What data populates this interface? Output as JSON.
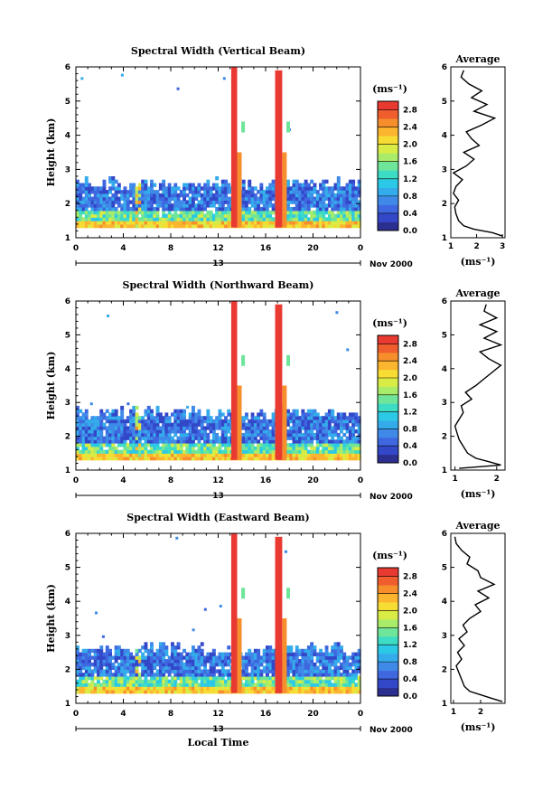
{
  "figure": {
    "xlabel": "Local Time",
    "date_label": "Nov 2000",
    "day_label": "13",
    "units_label": "(ms⁻¹)",
    "average_title": "Average",
    "colormap": [
      "#2b2f8f",
      "#3347c9",
      "#3e67e0",
      "#3f8ae8",
      "#34abeb",
      "#2cc9e6",
      "#3ddcc4",
      "#6fe59a",
      "#a9ec6a",
      "#d9ec45",
      "#f6dc33",
      "#fbb52f",
      "#f78e2c",
      "#ef5e2c",
      "#e93a32"
    ]
  },
  "chart_data": [
    {
      "type": "heatmap",
      "title": "Spectral Width (Vertical Beam)",
      "ylabel": "Height (km)",
      "xlim": [
        0,
        24
      ],
      "ylim": [
        1,
        6
      ],
      "x_ticks": [
        "0",
        "4",
        "8",
        "12",
        "16",
        "20",
        "0"
      ],
      "y_ticks": [
        "1",
        "2",
        "3",
        "4",
        "5",
        "6"
      ],
      "colorbar": {
        "range": [
          0,
          3.0
        ],
        "ticks": [
          "0.0",
          "0.4",
          "0.8",
          "1.2",
          "1.6",
          "2.0",
          "2.4",
          "2.8"
        ]
      },
      "echo_top_km": 2.55,
      "high_width_bands_hours": [
        [
          13.1,
          13.6
        ],
        [
          16.8,
          17.4
        ]
      ],
      "sparse_echoes": [
        [
          0.4,
          5.7
        ],
        [
          3.8,
          5.8
        ],
        [
          8.5,
          5.4
        ],
        [
          12.4,
          5.7
        ],
        [
          17.9,
          4.2
        ]
      ],
      "average": {
        "xlabel": "(ms⁻¹)",
        "xlim": [
          1,
          3.1
        ],
        "x_ticks": [
          "1",
          "2",
          "3"
        ],
        "height_km": [
          1.05,
          1.15,
          1.25,
          1.35,
          1.5,
          1.7,
          1.9,
          2.1,
          2.3,
          2.5,
          2.7,
          2.9,
          3.1,
          3.3,
          3.5,
          3.7,
          3.9,
          4.1,
          4.3,
          4.5,
          4.7,
          4.9,
          5.1,
          5.3,
          5.5,
          5.7,
          5.9
        ],
        "width_ms": [
          3.0,
          2.6,
          1.9,
          1.5,
          1.3,
          1.2,
          1.15,
          1.3,
          1.1,
          1.2,
          1.45,
          1.1,
          1.6,
          1.9,
          1.5,
          2.1,
          1.8,
          1.6,
          2.2,
          2.7,
          1.9,
          2.4,
          1.8,
          2.2,
          1.7,
          1.4,
          1.5
        ]
      }
    },
    {
      "type": "heatmap",
      "title": "Spectral Width (Northward Beam)",
      "ylabel": "Height (km)",
      "xlim": [
        0,
        24
      ],
      "ylim": [
        1,
        6
      ],
      "x_ticks": [
        "0",
        "4",
        "8",
        "12",
        "16",
        "20",
        "0"
      ],
      "y_ticks": [
        "1",
        "2",
        "3",
        "4",
        "5",
        "6"
      ],
      "colorbar": {
        "range": [
          0,
          3.0
        ],
        "ticks": [
          "0.0",
          "0.4",
          "0.8",
          "1.2",
          "1.6",
          "2.0",
          "2.4",
          "2.8"
        ]
      },
      "echo_top_km": 2.65,
      "high_width_bands_hours": [
        [
          13.1,
          13.6
        ],
        [
          16.8,
          17.4
        ]
      ],
      "sparse_echoes": [
        [
          2.6,
          5.6
        ],
        [
          1.2,
          3.0
        ],
        [
          4.3,
          3.0
        ],
        [
          9.3,
          2.9
        ],
        [
          21.9,
          5.7
        ],
        [
          22.8,
          4.6
        ]
      ],
      "average": {
        "xlabel": "(ms⁻¹)",
        "xlim": [
          0.9,
          2.2
        ],
        "x_ticks": [
          "1",
          "2"
        ],
        "height_km": [
          1.05,
          1.15,
          1.25,
          1.35,
          1.5,
          1.7,
          1.9,
          2.1,
          2.3,
          2.5,
          2.7,
          2.9,
          3.1,
          3.3,
          3.5,
          3.7,
          3.9,
          4.1,
          4.3,
          4.5,
          4.7,
          4.9,
          5.1,
          5.3,
          5.5,
          5.7,
          5.9
        ],
        "width_ms": [
          1.1,
          2.1,
          1.8,
          1.5,
          1.3,
          1.2,
          1.1,
          1.05,
          1.0,
          1.1,
          1.2,
          1.15,
          1.4,
          1.25,
          1.5,
          1.7,
          1.9,
          2.1,
          1.8,
          1.6,
          2.1,
          1.7,
          2.0,
          1.6,
          2.0,
          1.7,
          1.75
        ]
      }
    },
    {
      "type": "heatmap",
      "title": "Spectral Width (Eastward Beam)",
      "ylabel": "Height (km)",
      "xlim": [
        0,
        24
      ],
      "ylim": [
        1,
        6
      ],
      "x_ticks": [
        "0",
        "4",
        "8",
        "12",
        "16",
        "20",
        "0"
      ],
      "y_ticks": [
        "1",
        "2",
        "3",
        "4",
        "5",
        "6"
      ],
      "colorbar": {
        "range": [
          0,
          3.0
        ],
        "ticks": [
          "0.0",
          "0.4",
          "0.8",
          "1.2",
          "1.6",
          "2.0",
          "2.4",
          "2.8"
        ]
      },
      "echo_top_km": 2.55,
      "high_width_bands_hours": [
        [
          13.1,
          13.6
        ],
        [
          16.8,
          17.4
        ]
      ],
      "sparse_echoes": [
        [
          1.6,
          3.7
        ],
        [
          2.2,
          3.0
        ],
        [
          8.4,
          5.9
        ],
        [
          9.8,
          3.2
        ],
        [
          10.8,
          3.8
        ],
        [
          12.1,
          3.9
        ],
        [
          17.6,
          5.5
        ]
      ],
      "average": {
        "xlabel": "(ms⁻¹)",
        "xlim": [
          0.9,
          2.9
        ],
        "x_ticks": [
          "1",
          "2"
        ],
        "height_km": [
          1.05,
          1.15,
          1.25,
          1.35,
          1.5,
          1.7,
          1.9,
          2.1,
          2.3,
          2.5,
          2.7,
          2.9,
          3.1,
          3.3,
          3.5,
          3.7,
          3.9,
          4.1,
          4.3,
          4.5,
          4.7,
          4.9,
          5.1,
          5.3,
          5.5,
          5.7,
          5.9
        ],
        "width_ms": [
          2.8,
          2.4,
          2.0,
          1.6,
          1.4,
          1.3,
          1.2,
          1.1,
          1.3,
          1.15,
          1.4,
          1.2,
          1.5,
          1.35,
          1.6,
          2.0,
          1.8,
          2.3,
          1.9,
          2.5,
          2.0,
          1.9,
          1.5,
          1.6,
          1.3,
          1.1,
          1.05
        ]
      }
    }
  ]
}
